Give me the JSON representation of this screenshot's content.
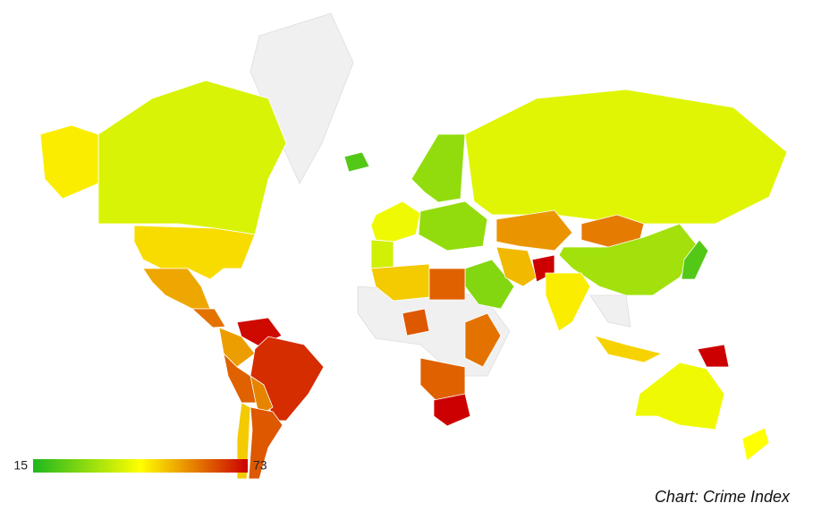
{
  "chart_data": {
    "type": "choropleth",
    "title": "Chart: Crime Index",
    "scale_min": 15,
    "scale_max": 73,
    "colors": [
      "#1eb71e",
      "#ffff00",
      "#cc0000"
    ],
    "values": [
      39,
      46,
      48,
      54,
      60,
      72,
      55,
      68,
      62,
      58,
      50,
      63,
      22,
      30,
      42,
      38,
      30,
      40,
      56,
      59,
      32,
      22,
      28,
      52,
      73,
      46,
      50,
      62,
      63,
      60,
      62,
      73,
      49,
      73,
      42,
      44
    ]
  }
}
